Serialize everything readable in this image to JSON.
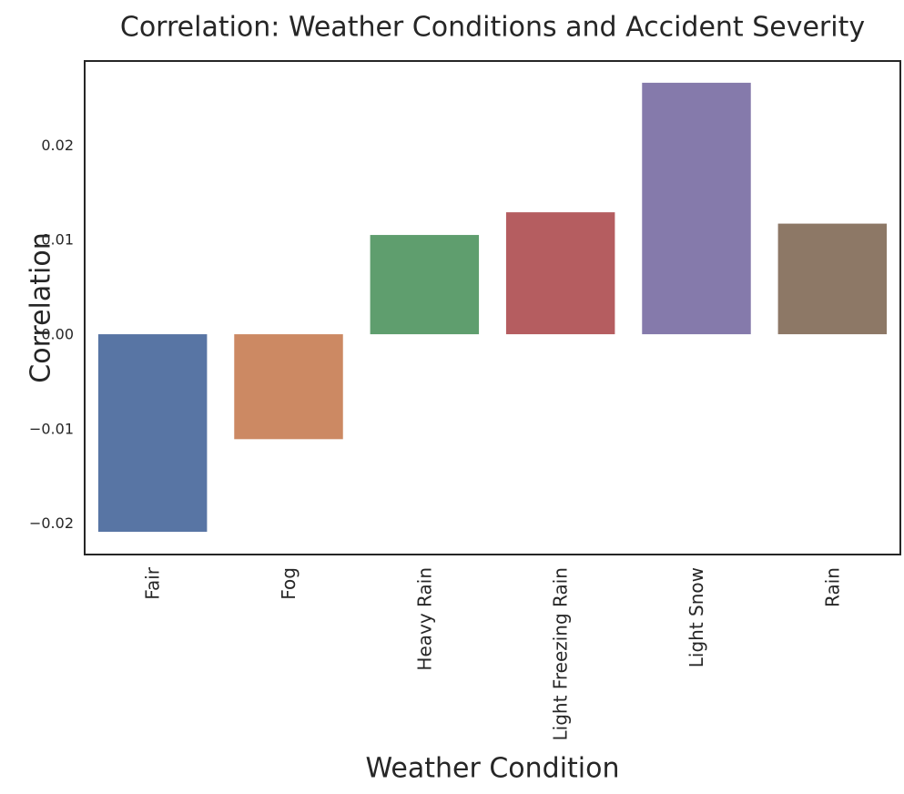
{
  "chart_data": {
    "type": "bar",
    "title": "Correlation: Weather Conditions and Accident Severity",
    "xlabel": "Weather Condition",
    "ylabel": "Correlation",
    "categories": [
      "Fair",
      "Fog",
      "Heavy Rain",
      "Light Freezing Rain",
      "Light Snow",
      "Rain"
    ],
    "values": [
      -0.0209,
      -0.0111,
      0.0105,
      0.0129,
      0.0266,
      0.0117
    ],
    "colors": [
      "#5875a4",
      "#cc8963",
      "#5f9e6e",
      "#b55d60",
      "#857aab",
      "#8d7866"
    ],
    "ylim": [
      -0.0233,
      0.0289
    ],
    "yticks": [
      -0.02,
      -0.01,
      0.0,
      0.01,
      0.02
    ],
    "ytick_labels": [
      "−0.02",
      "−0.01",
      "0.00",
      "0.01",
      "0.02"
    ],
    "grid": false,
    "legend": "none"
  }
}
